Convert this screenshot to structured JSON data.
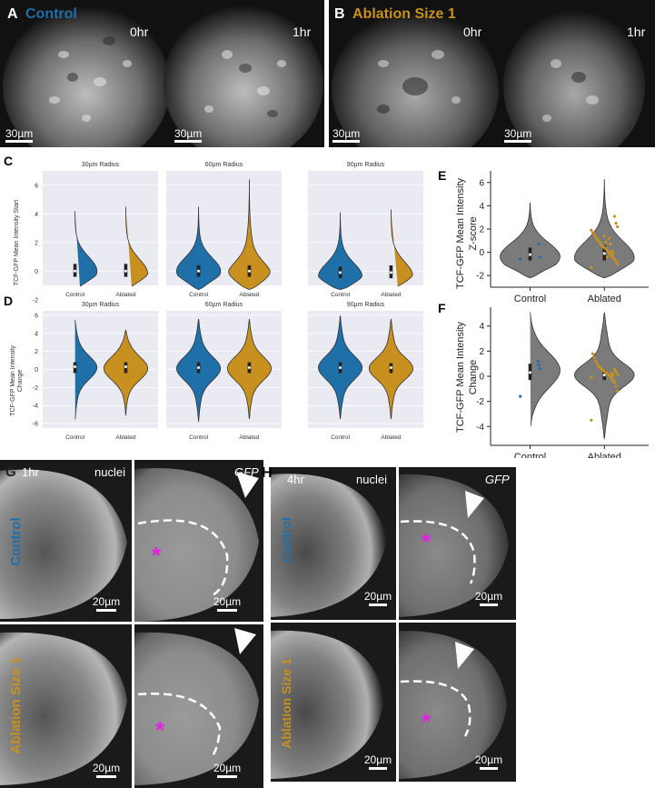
{
  "panels": {
    "A": {
      "label": "A",
      "condition": "Control",
      "times": [
        "0hr",
        "1hr"
      ],
      "scalebar": "30µm"
    },
    "B": {
      "label": "B",
      "condition": "Ablation Size 1",
      "times": [
        "0hr",
        "1hr"
      ],
      "scalebar": "30µm"
    },
    "C": {
      "label": "C",
      "ylabel": "TCF-GFP Mean Intensity Start"
    },
    "D": {
      "label": "D",
      "ylabel_line1": "TCF-GFP Mean Intensity",
      "ylabel_line2": "Change"
    },
    "E": {
      "label": "E",
      "ylabel_line1": "TCF-GFP Mean Intensity",
      "ylabel_line2": "Z-score"
    },
    "F": {
      "label": "F",
      "ylabel_line1": "TCF-GFP Mean Intensity",
      "ylabel_line2": "Change"
    },
    "G": {
      "label": "G",
      "time": "1hr",
      "channels": [
        "nuclei",
        "GFP"
      ],
      "rows": [
        "Control",
        "Ablation Size 1"
      ],
      "scalebar": "20µm"
    },
    "H": {
      "label": "H",
      "time": "4hr",
      "channels": [
        "nuclei",
        "GFP"
      ],
      "rows": [
        "Control",
        "Ablation Size 1"
      ],
      "scalebar": "20µm"
    }
  },
  "colors": {
    "control": "#1f6fa8",
    "ablated": "#c8901e",
    "violin_gray": "#7b7b7b",
    "asterisk": "#e023e0",
    "facet_bg": "#eaeaf2"
  },
  "chart_data": [
    {
      "id": "C",
      "type": "violin",
      "ylabel": "TCF-GFP Mean Intensity Start",
      "ylim": [
        -1,
        7
      ],
      "yticks": [
        -2,
        0,
        2,
        4,
        6
      ],
      "facets": [
        {
          "title": "30µm Radius",
          "categories": [
            "Control",
            "Ablated"
          ],
          "violins": [
            {
              "min": -1.2,
              "max": 4.2,
              "median": 0.0,
              "q1": -0.4,
              "q3": 0.5,
              "mode": 0.0
            },
            {
              "min": -1.2,
              "max": 4.5,
              "median": 0.0,
              "q1": -0.4,
              "q3": 0.5,
              "mode": -0.2
            }
          ]
        },
        {
          "title": "60µm Radius",
          "categories": [
            "Control",
            "Ablated"
          ],
          "violins": [
            {
              "min": -1.3,
              "max": 4.5,
              "median": 0.0,
              "q1": -0.4,
              "q3": 0.4,
              "mode": 0.0
            },
            {
              "min": -1.3,
              "max": 6.4,
              "median": 0.0,
              "q1": -0.4,
              "q3": 0.4,
              "mode": -0.3
            }
          ]
        },
        {
          "title": "90µm Radius",
          "categories": [
            "Control",
            "Ablated"
          ],
          "violins": [
            {
              "min": -1.3,
              "max": 4.1,
              "median": -0.1,
              "q1": -0.5,
              "q3": 0.3,
              "mode": -0.4
            },
            {
              "min": -1.2,
              "max": 4.3,
              "median": -0.1,
              "q1": -0.5,
              "q3": 0.4,
              "mode": -0.4
            }
          ]
        }
      ]
    },
    {
      "id": "D",
      "type": "violin",
      "ylabel": "TCF-GFP Mean Intensity Change",
      "ylim": [
        -6.5,
        6.5
      ],
      "yticks": [
        -6,
        -4,
        -2,
        0,
        2,
        4,
        6
      ],
      "facets": [
        {
          "title": "30µm Radius",
          "categories": [
            "Control",
            "Ablated"
          ],
          "violins": [
            {
              "min": -5.8,
              "max": 5.5,
              "median": 0.3,
              "q1": -0.4,
              "q3": 0.8,
              "mode": 0.2
            },
            {
              "min": -5.1,
              "max": 4.4,
              "median": 0.3,
              "q1": -0.4,
              "q3": 0.8,
              "mode": 0.1
            }
          ]
        },
        {
          "title": "60µm Radius",
          "categories": [
            "Control",
            "Ablated"
          ],
          "violins": [
            {
              "min": -5.8,
              "max": 5.6,
              "median": 0.2,
              "q1": -0.4,
              "q3": 0.8,
              "mode": 0.1
            },
            {
              "min": -5.5,
              "max": 5.6,
              "median": 0.2,
              "q1": -0.4,
              "q3": 0.8,
              "mode": 0.1
            }
          ]
        },
        {
          "title": "90µm Radius",
          "categories": [
            "Control",
            "Ablated"
          ],
          "violins": [
            {
              "min": -5.5,
              "max": 6.0,
              "median": 0.2,
              "q1": -0.4,
              "q3": 0.8,
              "mode": 0.2
            },
            {
              "min": -5.5,
              "max": 5.6,
              "median": 0.2,
              "q1": -0.4,
              "q3": 0.7,
              "mode": 0.1
            }
          ]
        }
      ]
    },
    {
      "id": "E",
      "type": "violin",
      "ylabel": "TCF-GFP Mean Intensity Z-score",
      "ylim": [
        -3,
        7
      ],
      "yticks": [
        -2,
        0,
        2,
        4,
        6
      ],
      "categories": [
        "Control",
        "Ablated"
      ],
      "violins": [
        {
          "min": -2.2,
          "max": 4.3,
          "median": -0.2,
          "q1": -0.7,
          "q3": 0.4,
          "mode": -0.4
        },
        {
          "min": -2.2,
          "max": 6.3,
          "median": -0.1,
          "q1": -0.7,
          "q3": 0.6,
          "mode": -0.5
        }
      ],
      "points": [
        {
          "group": "Control",
          "values": [
            -0.6,
            -0.4,
            0.7
          ]
        },
        {
          "group": "Ablated",
          "values": [
            -1.3,
            -1.0,
            -0.8,
            -0.6,
            -0.5,
            -0.3,
            -0.2,
            0.0,
            0.2,
            0.3,
            0.4,
            0.5,
            0.6,
            0.8,
            1.0,
            1.1,
            1.3,
            1.5,
            1.7,
            1.9,
            2.2,
            2.5,
            3.1,
            -0.1,
            0.1,
            0.7,
            1.2,
            -0.4,
            0.9,
            1.4
          ]
        }
      ]
    },
    {
      "id": "F",
      "type": "violin",
      "ylabel": "TCF-GFP Mean Intensity Change",
      "ylim": [
        -5.5,
        5.5
      ],
      "yticks": [
        -4,
        -2,
        0,
        2,
        4
      ],
      "categories": [
        "Control",
        "Ablated"
      ],
      "violins": [
        {
          "min": -4.2,
          "max": 5.1,
          "median": 0.3,
          "q1": -0.3,
          "q3": 1.0,
          "mode": 0.5
        },
        {
          "min": -5.0,
          "max": 5.1,
          "median": 0.1,
          "q1": -0.3,
          "q3": 0.5,
          "mode": 0.1
        }
      ],
      "points": [
        {
          "group": "Control",
          "values": [
            -1.6,
            0.6,
            0.9,
            1.2
          ]
        },
        {
          "group": "Ablated",
          "values": [
            -3.5,
            -1.2,
            -0.8,
            -0.5,
            -0.3,
            -0.2,
            0.0,
            0.1,
            0.2,
            0.3,
            0.4,
            0.5,
            0.6,
            0.7,
            0.8,
            1.0,
            1.2,
            1.5,
            1.8,
            -0.1,
            0.15,
            0.35,
            0.55,
            0.05,
            0.25
          ]
        }
      ]
    }
  ]
}
